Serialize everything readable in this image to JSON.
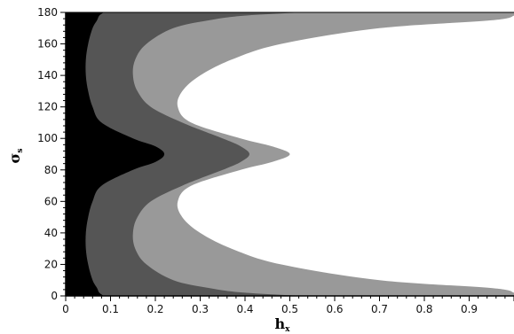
{
  "chart_data": {
    "type": "contour",
    "title": "",
    "xlabel": "h",
    "xlabel_sub": "x",
    "ylabel": "σ",
    "ylabel_sub": "s",
    "xlim": [
      0,
      1
    ],
    "ylim": [
      0,
      180
    ],
    "xticks": [
      0,
      0.1,
      0.2,
      0.3,
      0.4,
      0.5,
      0.6,
      0.7,
      0.8,
      0.9
    ],
    "xtick_labels": [
      "0",
      "0.1",
      "0.2",
      "0.3",
      "0.4",
      "0.5",
      "0.6",
      "0.7",
      "0.8",
      "0.9"
    ],
    "yticks": [
      0,
      20,
      40,
      60,
      80,
      100,
      120,
      140,
      160,
      180
    ],
    "ytick_labels": [
      "0",
      "20",
      "40",
      "60",
      "80",
      "100",
      "120",
      "140",
      "160",
      "180"
    ],
    "y": [
      0,
      2,
      5,
      10,
      20,
      30,
      40,
      50,
      60,
      70,
      80,
      85,
      90,
      95,
      100,
      110,
      120,
      130,
      140,
      150,
      160,
      170,
      175,
      178,
      180
    ],
    "regions": [
      {
        "color": "#000000",
        "boundary_x": [
          0.085,
          0.075,
          0.07,
          0.06,
          0.05,
          0.045,
          0.045,
          0.05,
          0.06,
          0.08,
          0.15,
          0.2,
          0.22,
          0.2,
          0.15,
          0.08,
          0.06,
          0.05,
          0.045,
          0.045,
          0.05,
          0.06,
          0.07,
          0.075,
          0.085
        ]
      },
      {
        "color": "#555555",
        "boundary_x": [
          0.53,
          0.4,
          0.32,
          0.24,
          0.18,
          0.155,
          0.15,
          0.16,
          0.19,
          0.26,
          0.35,
          0.39,
          0.41,
          0.39,
          0.35,
          0.26,
          0.19,
          0.16,
          0.15,
          0.155,
          0.18,
          0.24,
          0.32,
          0.4,
          0.53
        ]
      },
      {
        "color": "#999999",
        "boundary_x": [
          1.0,
          1.0,
          0.95,
          0.7,
          0.48,
          0.37,
          0.3,
          0.26,
          0.25,
          0.28,
          0.39,
          0.46,
          0.5,
          0.46,
          0.39,
          0.28,
          0.25,
          0.26,
          0.3,
          0.37,
          0.48,
          0.7,
          0.95,
          1.0,
          1.0
        ]
      }
    ],
    "background_color": "#ffffff",
    "grid": false,
    "legend": "none"
  }
}
